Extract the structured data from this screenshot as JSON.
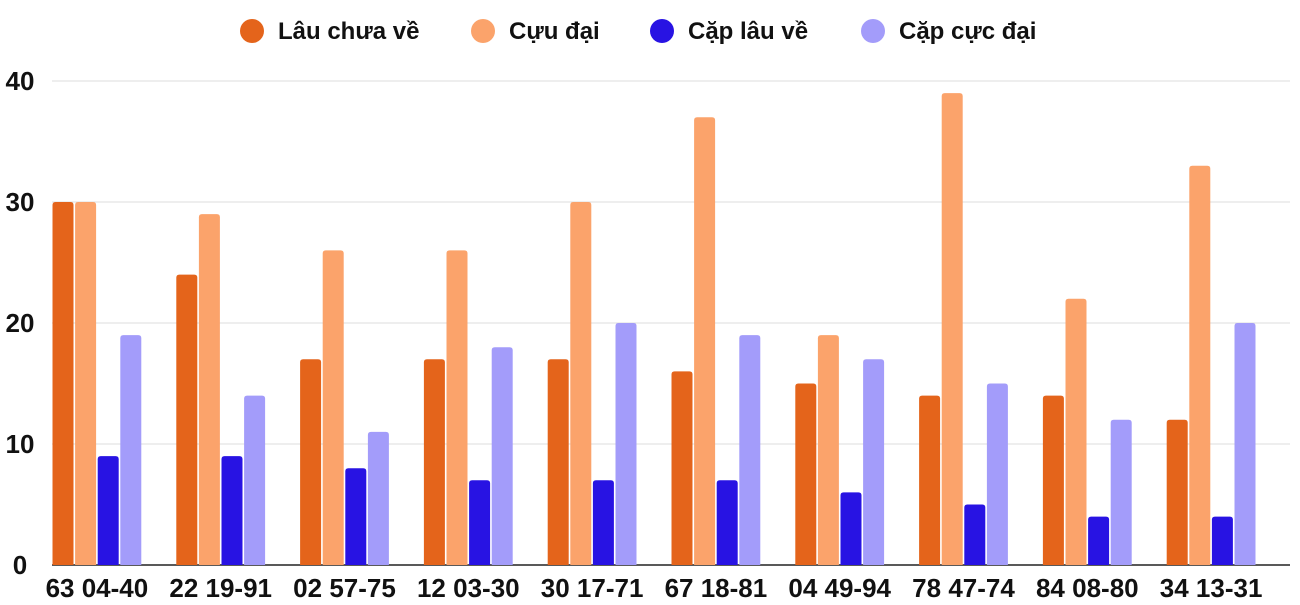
{
  "chart_data": {
    "type": "bar",
    "categories": [
      "63 04-40",
      "22 19-91",
      "02 57-75",
      "12 03-30",
      "30 17-71",
      "67 18-81",
      "04 49-94",
      "78 47-74",
      "84 08-80",
      "34 13-31"
    ],
    "series": [
      {
        "name": "Lâu chưa về",
        "color": "#e4641b",
        "values": [
          30,
          24,
          17,
          17,
          17,
          16,
          15,
          14,
          14,
          12
        ]
      },
      {
        "name": "Cựu đại",
        "color": "#fba36b",
        "values": [
          30,
          29,
          26,
          26,
          30,
          37,
          19,
          39,
          22,
          33
        ]
      },
      {
        "name": "Cặp lâu về",
        "color": "#2813e3",
        "values": [
          9,
          9,
          8,
          7,
          7,
          7,
          6,
          5,
          4,
          4
        ]
      },
      {
        "name": "Cặp cực đại",
        "color": "#a39cfa",
        "values": [
          19,
          14,
          11,
          18,
          20,
          19,
          17,
          15,
          12,
          20
        ]
      }
    ],
    "yticks": [
      "0",
      "10",
      "20",
      "30",
      "40"
    ],
    "ylim": [
      0,
      40
    ],
    "grid": true,
    "legend_position": "top"
  }
}
